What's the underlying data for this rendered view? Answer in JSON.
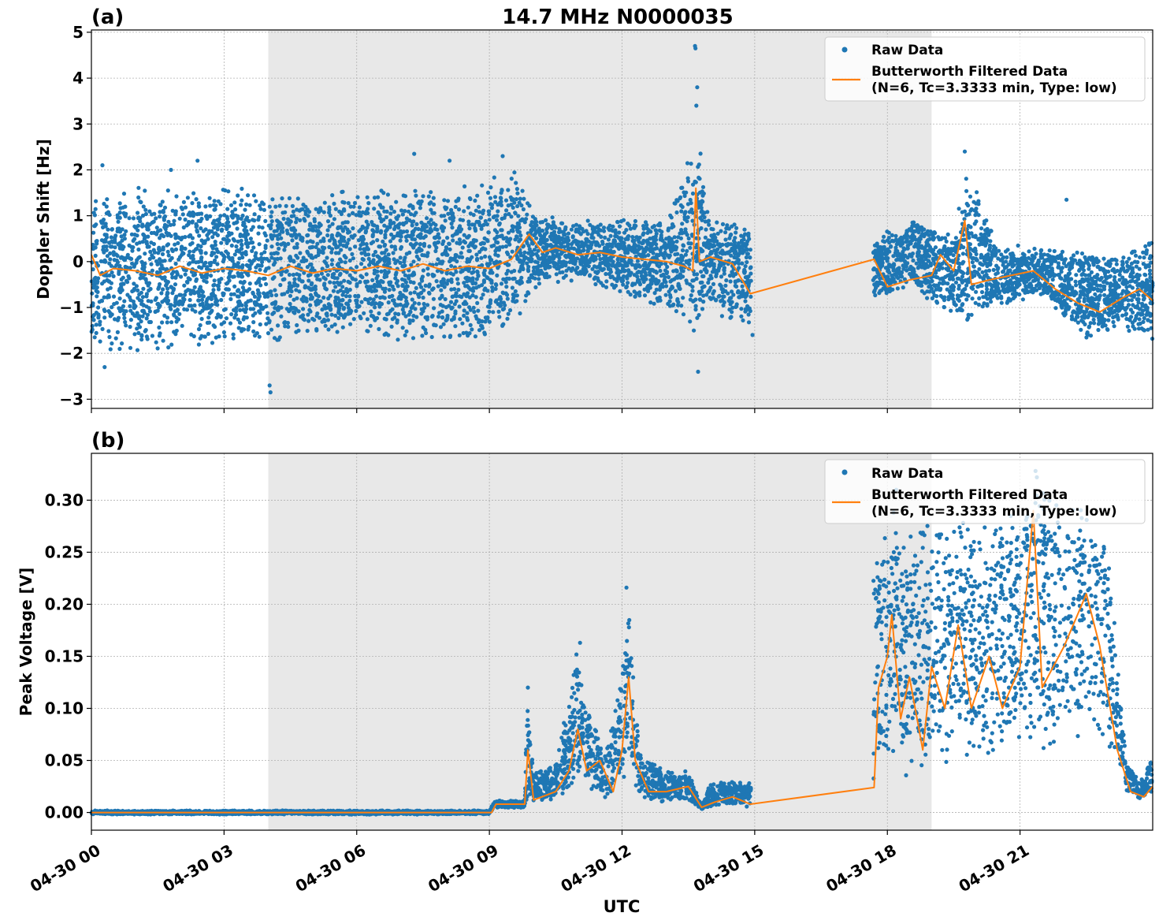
{
  "figure_title": "14.7 MHz N0000035",
  "x_axis_label": "UTC",
  "x_ticks": [
    "04-30 00",
    "04-30 03",
    "04-30 06",
    "04-30 09",
    "04-30 12",
    "04-30 15",
    "04-30 18",
    "04-30 21"
  ],
  "colors": {
    "raw": "#1f77b4",
    "filtered": "#ff7f0e",
    "shade": "#e8e8e8",
    "grid": "#b0b0b0"
  },
  "chart_data": [
    {
      "type": "scatter",
      "panel_label": "(a)",
      "ylabel": "Doppler Shift [Hz]",
      "xlabel": "UTC",
      "x_unit": "hours UTC on 04-30",
      "xlim": [
        0,
        24
      ],
      "ylim": [
        -3.2,
        5.05
      ],
      "y_ticks": [
        5,
        4,
        3,
        2,
        1,
        0,
        -1,
        -2,
        -3
      ],
      "y_tick_labels": [
        "5",
        "4",
        "3",
        "2",
        "1",
        "0",
        "−1",
        "−2",
        "−3"
      ],
      "grid": true,
      "legend_position": "upper-right",
      "shaded_x_range": [
        4,
        19
      ],
      "series": [
        {
          "name": "Raw Data",
          "kind": "points",
          "envelope": [
            {
              "x": 0,
              "low": -2.0,
              "high": 1.6
            },
            {
              "x": 1,
              "low": -2.0,
              "high": 1.7
            },
            {
              "x": 2,
              "low": -1.9,
              "high": 1.6
            },
            {
              "x": 3,
              "low": -1.8,
              "high": 1.7
            },
            {
              "x": 4,
              "low": -1.9,
              "high": 1.6
            },
            {
              "x": 5,
              "low": -1.7,
              "high": 1.6
            },
            {
              "x": 6,
              "low": -1.8,
              "high": 1.7
            },
            {
              "x": 7,
              "low": -1.8,
              "high": 1.6
            },
            {
              "x": 8,
              "low": -1.8,
              "high": 1.6
            },
            {
              "x": 9,
              "low": -1.9,
              "high": 1.8
            },
            {
              "x": 9.6,
              "low": -1.5,
              "high": 2.2
            },
            {
              "x": 10,
              "low": -0.6,
              "high": 1.1
            },
            {
              "x": 11,
              "low": -0.4,
              "high": 0.9
            },
            {
              "x": 12,
              "low": -0.8,
              "high": 1.0
            },
            {
              "x": 13,
              "low": -1.0,
              "high": 0.9
            },
            {
              "x": 13.7,
              "low": -2.0,
              "high": 3.0
            },
            {
              "x": 14,
              "low": -1.1,
              "high": 1.0
            },
            {
              "x": 14.9,
              "low": -1.5,
              "high": 0.9
            },
            {
              "x": 17.7,
              "low": -0.8,
              "high": 0.5
            },
            {
              "x": 18.5,
              "low": -0.6,
              "high": 1.0
            },
            {
              "x": 19.5,
              "low": -1.3,
              "high": 0.6
            },
            {
              "x": 19.8,
              "low": -1.6,
              "high": 2.3
            },
            {
              "x": 20.5,
              "low": -1.0,
              "high": 0.4
            },
            {
              "x": 21.5,
              "low": -0.8,
              "high": 0.3
            },
            {
              "x": 22.5,
              "low": -1.7,
              "high": 0.3
            },
            {
              "x": 23.3,
              "low": -1.5,
              "high": 0.2
            },
            {
              "x": 24,
              "low": -1.7,
              "high": 0.6
            }
          ],
          "outliers": [
            {
              "x": 13.65,
              "y": 4.7
            },
            {
              "x": 13.66,
              "y": 4.65
            },
            {
              "x": 13.7,
              "y": 3.8
            },
            {
              "x": 13.68,
              "y": 3.4
            },
            {
              "x": 13.72,
              "y": -2.4
            },
            {
              "x": 4.05,
              "y": -2.85
            },
            {
              "x": 4.03,
              "y": -2.7
            },
            {
              "x": 0.3,
              "y": -2.3
            },
            {
              "x": 0.25,
              "y": 2.1
            },
            {
              "x": 1.8,
              "y": 2.0
            },
            {
              "x": 2.4,
              "y": 2.2
            },
            {
              "x": 7.3,
              "y": 2.35
            },
            {
              "x": 8.1,
              "y": 2.2
            },
            {
              "x": 9.3,
              "y": 2.3
            },
            {
              "x": 19.75,
              "y": 2.4
            },
            {
              "x": 22.05,
              "y": 1.35
            },
            {
              "x": 14.95,
              "y": -1.6
            }
          ]
        },
        {
          "name": "Butterworth Filtered Data",
          "legend_detail": "(N=6, Tc=3.3333 min, Type: low)",
          "kind": "line",
          "points": [
            {
              "x": 0,
              "y": 0.15
            },
            {
              "x": 0.2,
              "y": -0.3
            },
            {
              "x": 0.5,
              "y": -0.15
            },
            {
              "x": 1,
              "y": -0.2
            },
            {
              "x": 1.5,
              "y": -0.3
            },
            {
              "x": 2,
              "y": -0.1
            },
            {
              "x": 2.5,
              "y": -0.25
            },
            {
              "x": 3,
              "y": -0.15
            },
            {
              "x": 3.5,
              "y": -0.2
            },
            {
              "x": 4,
              "y": -0.3
            },
            {
              "x": 4.5,
              "y": -0.1
            },
            {
              "x": 5,
              "y": -0.25
            },
            {
              "x": 5.5,
              "y": -0.15
            },
            {
              "x": 6,
              "y": -0.2
            },
            {
              "x": 6.5,
              "y": -0.1
            },
            {
              "x": 7,
              "y": -0.2
            },
            {
              "x": 7.5,
              "y": -0.05
            },
            {
              "x": 8,
              "y": -0.2
            },
            {
              "x": 8.5,
              "y": -0.1
            },
            {
              "x": 9,
              "y": -0.15
            },
            {
              "x": 9.5,
              "y": 0.05
            },
            {
              "x": 9.9,
              "y": 0.6
            },
            {
              "x": 10.2,
              "y": 0.2
            },
            {
              "x": 10.5,
              "y": 0.3
            },
            {
              "x": 11,
              "y": 0.15
            },
            {
              "x": 11.5,
              "y": 0.2
            },
            {
              "x": 12,
              "y": 0.1
            },
            {
              "x": 12.5,
              "y": 0.05
            },
            {
              "x": 13,
              "y": 0.0
            },
            {
              "x": 13.4,
              "y": -0.1
            },
            {
              "x": 13.6,
              "y": -0.2
            },
            {
              "x": 13.67,
              "y": 1.6
            },
            {
              "x": 13.75,
              "y": 0.0
            },
            {
              "x": 14,
              "y": 0.1
            },
            {
              "x": 14.5,
              "y": -0.05
            },
            {
              "x": 14.9,
              "y": -0.7
            },
            {
              "x": 17.7,
              "y": 0.05
            },
            {
              "x": 18.0,
              "y": -0.55
            },
            {
              "x": 18.5,
              "y": -0.4
            },
            {
              "x": 19.0,
              "y": -0.3
            },
            {
              "x": 19.2,
              "y": 0.15
            },
            {
              "x": 19.5,
              "y": -0.2
            },
            {
              "x": 19.75,
              "y": 0.9
            },
            {
              "x": 19.9,
              "y": -0.5
            },
            {
              "x": 20.3,
              "y": -0.4
            },
            {
              "x": 20.8,
              "y": -0.3
            },
            {
              "x": 21.3,
              "y": -0.2
            },
            {
              "x": 21.8,
              "y": -0.6
            },
            {
              "x": 22.3,
              "y": -0.9
            },
            {
              "x": 22.8,
              "y": -1.1
            },
            {
              "x": 23.3,
              "y": -0.8
            },
            {
              "x": 23.7,
              "y": -0.6
            },
            {
              "x": 24,
              "y": -0.85
            }
          ]
        }
      ]
    },
    {
      "type": "scatter",
      "panel_label": "(b)",
      "ylabel": "Peak Voltage [V]",
      "xlabel": "UTC",
      "x_unit": "hours UTC on 04-30",
      "xlim": [
        0,
        24
      ],
      "ylim": [
        -0.017,
        0.345
      ],
      "y_ticks": [
        0.3,
        0.25,
        0.2,
        0.15,
        0.1,
        0.05,
        0.0
      ],
      "y_tick_labels": [
        "0.30",
        "0.25",
        "0.20",
        "0.15",
        "0.10",
        "0.05",
        "0.00"
      ],
      "grid": true,
      "legend_position": "upper-right",
      "shaded_x_range": [
        4,
        19
      ],
      "series": [
        {
          "name": "Raw Data",
          "kind": "points",
          "envelope": [
            {
              "x": 0,
              "low": -0.002,
              "high": 0.002
            },
            {
              "x": 9.0,
              "low": -0.002,
              "high": 0.002
            },
            {
              "x": 9.1,
              "low": 0.004,
              "high": 0.012
            },
            {
              "x": 9.8,
              "low": 0.004,
              "high": 0.012
            },
            {
              "x": 9.85,
              "low": 0.01,
              "high": 0.12
            },
            {
              "x": 10.0,
              "low": 0.01,
              "high": 0.04
            },
            {
              "x": 10.5,
              "low": 0.01,
              "high": 0.05
            },
            {
              "x": 11.0,
              "low": 0.02,
              "high": 0.16
            },
            {
              "x": 11.3,
              "low": 0.02,
              "high": 0.1
            },
            {
              "x": 11.6,
              "low": 0.01,
              "high": 0.06
            },
            {
              "x": 12.0,
              "low": 0.03,
              "high": 0.14
            },
            {
              "x": 12.15,
              "low": 0.04,
              "high": 0.21
            },
            {
              "x": 12.4,
              "low": 0.01,
              "high": 0.06
            },
            {
              "x": 13.0,
              "low": 0.01,
              "high": 0.04
            },
            {
              "x": 13.5,
              "low": 0.01,
              "high": 0.04
            },
            {
              "x": 13.8,
              "low": 0.003,
              "high": 0.006
            },
            {
              "x": 14.0,
              "low": 0.005,
              "high": 0.03
            },
            {
              "x": 14.9,
              "low": 0.005,
              "high": 0.03
            },
            {
              "x": 17.7,
              "low": 0.03,
              "high": 0.25
            },
            {
              "x": 18.0,
              "low": 0.04,
              "high": 0.3
            },
            {
              "x": 18.5,
              "low": 0.03,
              "high": 0.28
            },
            {
              "x": 19.0,
              "low": 0.04,
              "high": 0.3
            },
            {
              "x": 19.5,
              "low": 0.04,
              "high": 0.29
            },
            {
              "x": 20.0,
              "low": 0.05,
              "high": 0.28
            },
            {
              "x": 20.5,
              "low": 0.04,
              "high": 0.29
            },
            {
              "x": 21.0,
              "low": 0.05,
              "high": 0.31
            },
            {
              "x": 21.4,
              "low": 0.06,
              "high": 0.33
            },
            {
              "x": 22.0,
              "low": 0.06,
              "high": 0.3
            },
            {
              "x": 22.5,
              "low": 0.07,
              "high": 0.31
            },
            {
              "x": 23.0,
              "low": 0.06,
              "high": 0.28
            },
            {
              "x": 23.4,
              "low": 0.02,
              "high": 0.05
            },
            {
              "x": 23.7,
              "low": 0.012,
              "high": 0.03
            },
            {
              "x": 24,
              "low": 0.015,
              "high": 0.06
            }
          ],
          "outliers": [
            {
              "x": 21.35,
              "y": 0.328
            },
            {
              "x": 21.38,
              "y": 0.322
            },
            {
              "x": 18.2,
              "y": 0.31
            },
            {
              "x": 12.1,
              "y": 0.216
            },
            {
              "x": 11.05,
              "y": 0.163
            },
            {
              "x": 9.87,
              "y": 0.12
            }
          ]
        },
        {
          "name": "Butterworth Filtered Data",
          "legend_detail": "(N=6, Tc=3.3333 min, Type: low)",
          "kind": "line",
          "points": [
            {
              "x": 0,
              "y": 0.0
            },
            {
              "x": 9.05,
              "y": 0.0
            },
            {
              "x": 9.15,
              "y": 0.008
            },
            {
              "x": 9.8,
              "y": 0.008
            },
            {
              "x": 9.87,
              "y": 0.06
            },
            {
              "x": 10.0,
              "y": 0.012
            },
            {
              "x": 10.5,
              "y": 0.02
            },
            {
              "x": 10.8,
              "y": 0.04
            },
            {
              "x": 11.0,
              "y": 0.08
            },
            {
              "x": 11.2,
              "y": 0.04
            },
            {
              "x": 11.5,
              "y": 0.05
            },
            {
              "x": 11.8,
              "y": 0.02
            },
            {
              "x": 12.0,
              "y": 0.06
            },
            {
              "x": 12.15,
              "y": 0.13
            },
            {
              "x": 12.3,
              "y": 0.05
            },
            {
              "x": 12.6,
              "y": 0.02
            },
            {
              "x": 13.0,
              "y": 0.02
            },
            {
              "x": 13.5,
              "y": 0.025
            },
            {
              "x": 13.8,
              "y": 0.005
            },
            {
              "x": 14.1,
              "y": 0.01
            },
            {
              "x": 14.5,
              "y": 0.015
            },
            {
              "x": 14.9,
              "y": 0.008
            },
            {
              "x": 17.7,
              "y": 0.024
            },
            {
              "x": 17.8,
              "y": 0.12
            },
            {
              "x": 18.0,
              "y": 0.15
            },
            {
              "x": 18.1,
              "y": 0.19
            },
            {
              "x": 18.3,
              "y": 0.09
            },
            {
              "x": 18.5,
              "y": 0.13
            },
            {
              "x": 18.8,
              "y": 0.06
            },
            {
              "x": 19.0,
              "y": 0.14
            },
            {
              "x": 19.3,
              "y": 0.1
            },
            {
              "x": 19.6,
              "y": 0.18
            },
            {
              "x": 19.9,
              "y": 0.1
            },
            {
              "x": 20.3,
              "y": 0.15
            },
            {
              "x": 20.6,
              "y": 0.1
            },
            {
              "x": 21.0,
              "y": 0.14
            },
            {
              "x": 21.3,
              "y": 0.29
            },
            {
              "x": 21.5,
              "y": 0.12
            },
            {
              "x": 22.0,
              "y": 0.16
            },
            {
              "x": 22.5,
              "y": 0.21
            },
            {
              "x": 22.8,
              "y": 0.16
            },
            {
              "x": 23.2,
              "y": 0.06
            },
            {
              "x": 23.5,
              "y": 0.02
            },
            {
              "x": 23.8,
              "y": 0.015
            },
            {
              "x": 24,
              "y": 0.025
            }
          ]
        }
      ]
    }
  ]
}
